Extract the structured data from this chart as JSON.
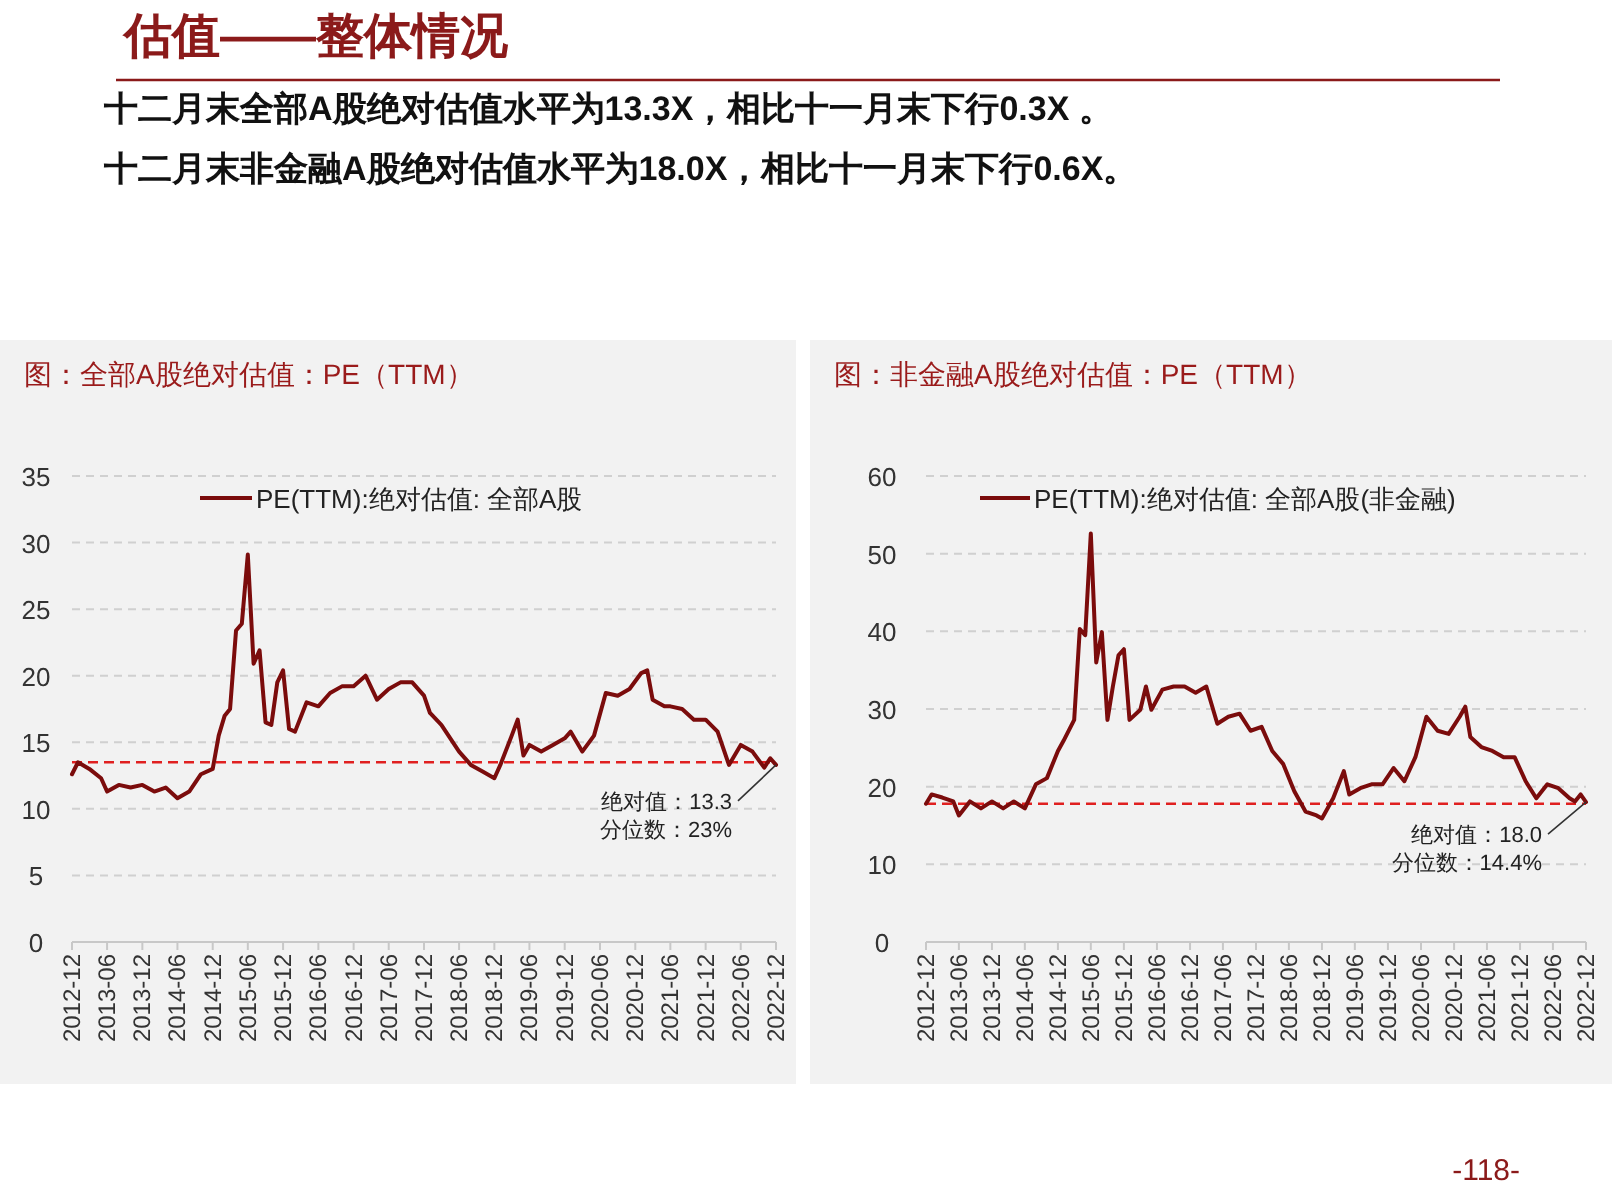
{
  "chart_data": [
    {
      "type": "line",
      "title": "图：全部A股绝对估值：PE（TTM）",
      "annotations": [
        "估值——整体情况",
        "十二月末全部A股绝对估值水平为13.3X，相比十一月末下行0.3X 。",
        "十二月末非金融A股绝对估值水平为18.0X，相比十一月末下行0.6X。",
        {
          "text": "绝对值：13.3\n分位数：23%",
          "x": "2022-12",
          "y": 13.3
        }
      ],
      "series": [
        {
          "name": "PE(TTM):绝对估值: 全部A股",
          "color": "#7b0c0c",
          "x": [
            "2012-12",
            "2013-01",
            "2013-03",
            "2013-05",
            "2013-06",
            "2013-08",
            "2013-10",
            "2013-12",
            "2014-02",
            "2014-04",
            "2014-06",
            "2014-08",
            "2014-10",
            "2014-12",
            "2015-01",
            "2015-02",
            "2015-03",
            "2015-04",
            "2015-05",
            "2015-06",
            "2015-07",
            "2015-08",
            "2015-09",
            "2015-10",
            "2015-11",
            "2015-12",
            "2016-01",
            "2016-02",
            "2016-04",
            "2016-06",
            "2016-08",
            "2016-10",
            "2016-12",
            "2017-02",
            "2017-04",
            "2017-06",
            "2017-08",
            "2017-10",
            "2017-12",
            "2018-01",
            "2018-03",
            "2018-06",
            "2018-08",
            "2018-10",
            "2018-12",
            "2019-01",
            "2019-03",
            "2019-04",
            "2019-05",
            "2019-06",
            "2019-08",
            "2019-10",
            "2019-12",
            "2020-01",
            "2020-03",
            "2020-05",
            "2020-07",
            "2020-09",
            "2020-11",
            "2021-01",
            "2021-02",
            "2021-03",
            "2021-05",
            "2021-06",
            "2021-08",
            "2021-10",
            "2021-12",
            "2022-02",
            "2022-04",
            "2022-06",
            "2022-08",
            "2022-10",
            "2022-11",
            "2022-12"
          ],
          "values": [
            12.6,
            13.5,
            13.0,
            12.3,
            11.3,
            11.8,
            11.6,
            11.8,
            11.3,
            11.6,
            10.8,
            11.3,
            12.6,
            13.0,
            15.5,
            17.0,
            17.5,
            23.4,
            23.9,
            29.1,
            20.9,
            21.9,
            16.5,
            16.3,
            19.5,
            20.4,
            16.0,
            15.8,
            18.0,
            17.7,
            18.7,
            19.2,
            19.2,
            20.0,
            18.2,
            19.0,
            19.5,
            19.5,
            18.5,
            17.2,
            16.3,
            14.3,
            13.3,
            12.8,
            12.3,
            13.3,
            15.5,
            16.7,
            14.0,
            14.8,
            14.3,
            14.8,
            15.3,
            15.8,
            14.3,
            15.5,
            18.7,
            18.5,
            19.0,
            20.2,
            20.4,
            18.2,
            17.7,
            17.7,
            17.5,
            16.7,
            16.7,
            15.8,
            13.3,
            14.8,
            14.3,
            13.1,
            13.8,
            13.3
          ]
        }
      ],
      "xlim": [
        "2012-12",
        "2022-12"
      ],
      "xticks": [
        "2012-12",
        "2013-06",
        "2013-12",
        "2014-06",
        "2014-12",
        "2015-06",
        "2015-12",
        "2016-06",
        "2016-12",
        "2017-06",
        "2017-12",
        "2018-06",
        "2018-12",
        "2019-06",
        "2019-12",
        "2020-06",
        "2020-12",
        "2021-06",
        "2021-12",
        "2022-06",
        "2022-12"
      ],
      "ylim": [
        0,
        35
      ],
      "yticks": [
        0,
        5,
        10,
        15,
        20,
        25,
        30,
        35
      ],
      "ref_lines": [
        {
          "axis": "y",
          "value": 13.5,
          "color": "#e02020",
          "line_style": "dashed"
        }
      ],
      "grid": "y",
      "legend": "top",
      "marker": "none",
      "line_style": "solid"
    },
    {
      "type": "line",
      "title": "图：非金融A股绝对估值：PE（TTM）",
      "annotations": [
        {
          "text": "绝对值：18.0\n分位数：14.4%",
          "x": "2022-12",
          "y": 18.0
        },
        "-118-"
      ],
      "series": [
        {
          "name": "PE(TTM):绝对估值: 全部A股(非金融)",
          "color": "#7b0c0c",
          "x": [
            "2012-12",
            "2013-01",
            "2013-03",
            "2013-05",
            "2013-06",
            "2013-08",
            "2013-10",
            "2013-12",
            "2014-02",
            "2014-04",
            "2014-06",
            "2014-08",
            "2014-10",
            "2014-12",
            "2015-01",
            "2015-03",
            "2015-04",
            "2015-05",
            "2015-06",
            "2015-07",
            "2015-08",
            "2015-09",
            "2015-10",
            "2015-11",
            "2015-12",
            "2016-01",
            "2016-03",
            "2016-04",
            "2016-05",
            "2016-07",
            "2016-09",
            "2016-11",
            "2017-01",
            "2017-03",
            "2017-05",
            "2017-07",
            "2017-09",
            "2017-11",
            "2018-01",
            "2018-03",
            "2018-05",
            "2018-07",
            "2018-09",
            "2018-11",
            "2018-12",
            "2019-02",
            "2019-04",
            "2019-05",
            "2019-07",
            "2019-09",
            "2019-11",
            "2020-01",
            "2020-03",
            "2020-05",
            "2020-07",
            "2020-09",
            "2020-11",
            "2021-01",
            "2021-02",
            "2021-03",
            "2021-05",
            "2021-07",
            "2021-09",
            "2021-11",
            "2022-01",
            "2022-03",
            "2022-05",
            "2022-07",
            "2022-09",
            "2022-10",
            "2022-11",
            "2022-12"
          ],
          "values": [
            17.8,
            19.0,
            18.6,
            18.1,
            16.3,
            18.1,
            17.2,
            18.1,
            17.2,
            18.1,
            17.2,
            20.3,
            21.1,
            24.6,
            25.9,
            28.6,
            40.3,
            39.5,
            52.6,
            36.0,
            39.9,
            28.6,
            32.9,
            36.9,
            37.7,
            28.6,
            29.9,
            32.9,
            29.9,
            32.5,
            32.9,
            32.9,
            32.1,
            32.9,
            28.1,
            29.0,
            29.4,
            27.2,
            27.7,
            24.6,
            22.9,
            19.4,
            16.8,
            16.3,
            15.9,
            18.5,
            22.0,
            19.0,
            19.8,
            20.3,
            20.3,
            22.4,
            20.7,
            23.8,
            29.0,
            27.2,
            26.8,
            29.0,
            30.3,
            26.4,
            25.1,
            24.6,
            23.8,
            23.8,
            20.7,
            18.5,
            20.3,
            19.8,
            18.5,
            18.1,
            19.0,
            18.0
          ]
        }
      ],
      "xlim": [
        "2012-12",
        "2022-12"
      ],
      "xticks": [
        "2012-12",
        "2013-06",
        "2013-12",
        "2014-06",
        "2014-12",
        "2015-06",
        "2015-12",
        "2016-06",
        "2016-12",
        "2017-06",
        "2017-12",
        "2018-06",
        "2018-12",
        "2019-06",
        "2019-12",
        "2020-06",
        "2020-12",
        "2021-06",
        "2021-12",
        "2022-06",
        "2022-12"
      ],
      "ylim": [
        0,
        60
      ],
      "yticks": [
        0,
        10,
        20,
        30,
        40,
        50,
        60
      ],
      "ref_lines": [
        {
          "axis": "y",
          "value": 17.8,
          "color": "#e02020",
          "line_style": "dashed"
        }
      ],
      "grid": "y",
      "legend": "top",
      "marker": "none",
      "line_style": "solid"
    }
  ]
}
